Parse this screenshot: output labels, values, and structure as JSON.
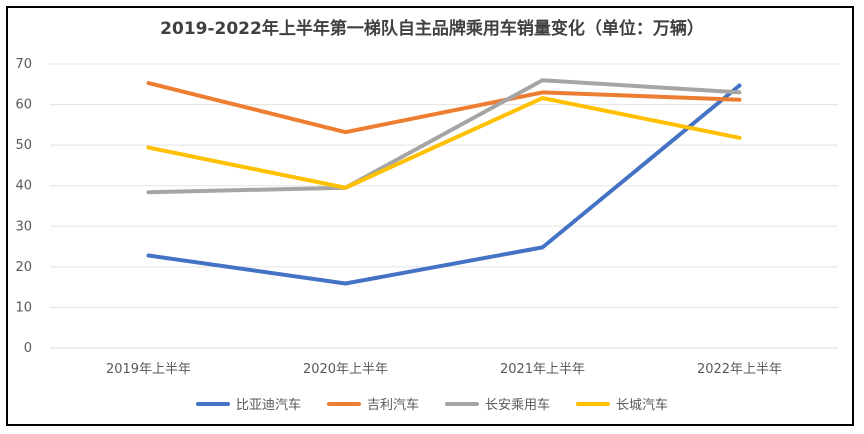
{
  "chart_data": {
    "type": "line",
    "title": "2019-2022年上半年第一梯队自主品牌乘用车销量变化（单位：万辆）",
    "xlabel": "",
    "ylabel": "",
    "categories": [
      "2019年上半年",
      "2020年上半年",
      "2021年上半年",
      "2022年上半年"
    ],
    "ylim": [
      0,
      70
    ],
    "yticks": [
      0,
      10,
      20,
      30,
      40,
      50,
      60,
      70
    ],
    "grid": true,
    "legend_position": "bottom",
    "series": [
      {
        "name": "比亚迪汽车",
        "color": "#4472C4",
        "values": [
          22.8,
          15.9,
          24.8,
          64.7
        ]
      },
      {
        "name": "吉利汽车",
        "color": "#ED7D31",
        "values": [
          65.3,
          53.2,
          63.0,
          61.2
        ]
      },
      {
        "name": "长安乘用车",
        "color": "#A5A5A5",
        "values": [
          38.4,
          39.5,
          66.0,
          63.0
        ]
      },
      {
        "name": "长城汽车",
        "color": "#FFC000",
        "values": [
          49.4,
          39.5,
          61.6,
          51.8
        ]
      }
    ]
  }
}
